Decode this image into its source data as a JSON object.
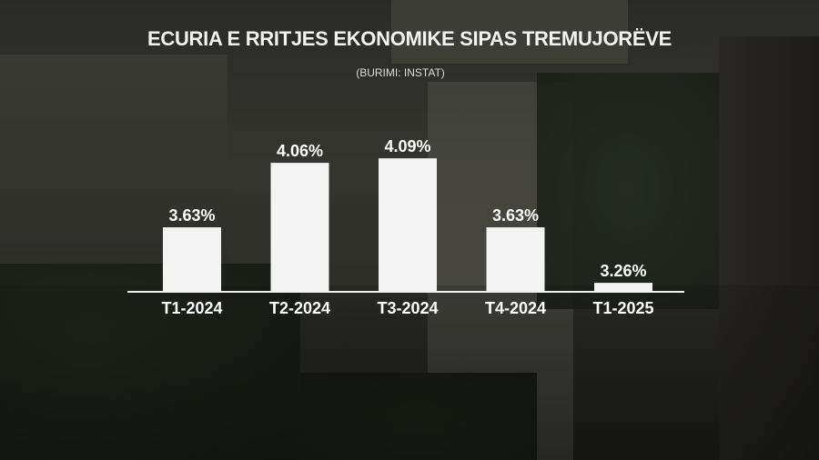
{
  "header": {
    "title": "ECURIA E RRITJES EKONOMIKE SIPAS TREMUJORËVE",
    "source": "(BURIMI: INSTAT)"
  },
  "colors": {
    "bar": "#f3f3f3",
    "text": "#ffffff"
  },
  "chart_data": {
    "type": "bar",
    "title": "ECURIA E RRITJES EKONOMIKE SIPAS TREMUJORËVE",
    "subtitle": "(BURIMI: INSTAT)",
    "categories": [
      "T1-2024",
      "T2-2024",
      "T3-2024",
      "T4-2024",
      "T1-2025"
    ],
    "values": [
      3.63,
      4.06,
      4.09,
      3.63,
      3.26
    ],
    "value_labels": [
      "3.63%",
      "4.06%",
      "4.09%",
      "3.63%",
      "3.26%"
    ],
    "xlabel": "",
    "ylabel": "",
    "unit": "%",
    "grid": false,
    "legend": "none"
  }
}
